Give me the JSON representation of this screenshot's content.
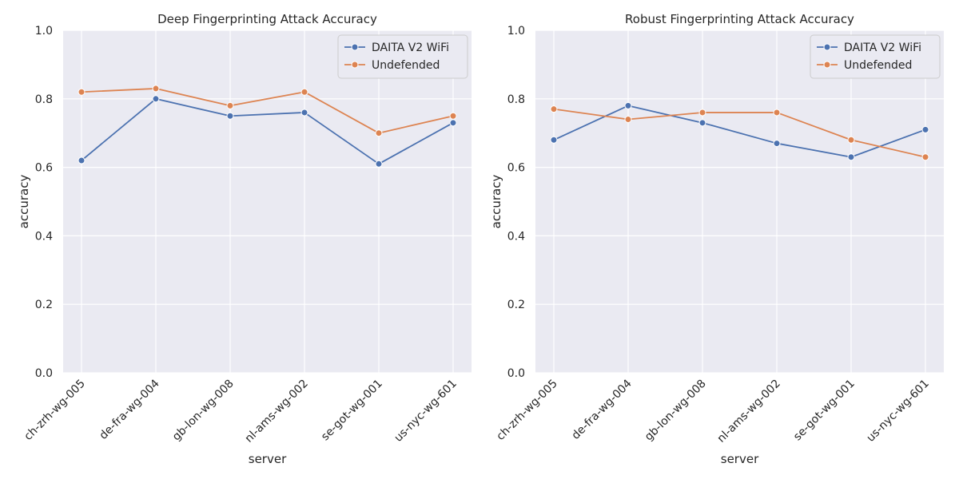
{
  "chart_data": [
    {
      "type": "line",
      "title": "Deep Fingerprinting Attack Accuracy",
      "xlabel": "server",
      "ylabel": "accuracy",
      "categories": [
        "ch-zrh-wg-005",
        "de-fra-wg-004",
        "gb-lon-wg-008",
        "nl-ams-wg-002",
        "se-got-wg-001",
        "us-nyc-wg-601"
      ],
      "ylim": [
        0,
        1.0
      ],
      "yticks": [
        "0.0",
        "0.2",
        "0.4",
        "0.6",
        "0.8",
        "1.0"
      ],
      "grid": true,
      "legend_position": "top-right",
      "series": [
        {
          "name": "DAITA V2 WiFi",
          "color": "#4c72b0",
          "values": [
            0.62,
            0.8,
            0.75,
            0.76,
            0.61,
            0.73
          ]
        },
        {
          "name": "Undefended",
          "color": "#dd8452",
          "values": [
            0.82,
            0.83,
            0.78,
            0.82,
            0.7,
            0.75
          ]
        }
      ]
    },
    {
      "type": "line",
      "title": "Robust Fingerprinting Attack Accuracy",
      "xlabel": "server",
      "ylabel": "accuracy",
      "categories": [
        "ch-zrh-wg-005",
        "de-fra-wg-004",
        "gb-lon-wg-008",
        "nl-ams-wg-002",
        "se-got-wg-001",
        "us-nyc-wg-601"
      ],
      "ylim": [
        0,
        1.0
      ],
      "yticks": [
        "0.0",
        "0.2",
        "0.4",
        "0.6",
        "0.8",
        "1.0"
      ],
      "grid": true,
      "legend_position": "top-right",
      "series": [
        {
          "name": "DAITA V2 WiFi",
          "color": "#4c72b0",
          "values": [
            0.68,
            0.78,
            0.73,
            0.67,
            0.63,
            0.71
          ]
        },
        {
          "name": "Undefended",
          "color": "#dd8452",
          "values": [
            0.77,
            0.74,
            0.76,
            0.76,
            0.68,
            0.63
          ]
        }
      ]
    }
  ]
}
